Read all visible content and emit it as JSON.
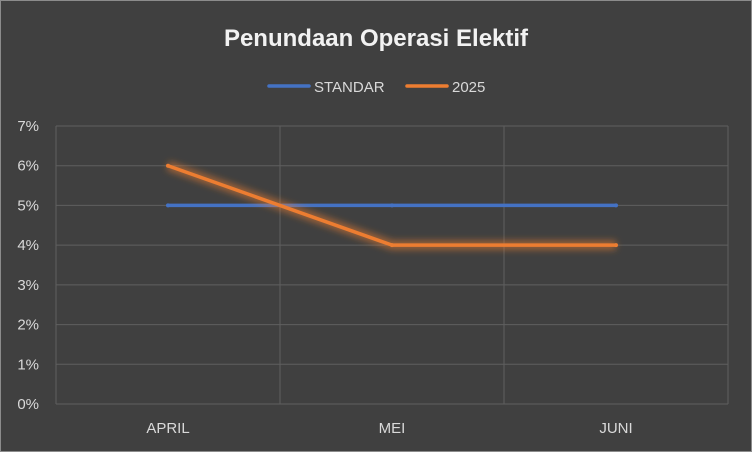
{
  "chart_data": {
    "type": "line",
    "title": "Penundaan Operasi Elektif",
    "categories": [
      "APRIL",
      "MEI",
      "JUNI"
    ],
    "series": [
      {
        "name": "STANDAR",
        "values": [
          5,
          5,
          5
        ],
        "color": "#4472C4"
      },
      {
        "name": "2025",
        "values": [
          6,
          4,
          4
        ],
        "color": "#ED7D31"
      }
    ],
    "y_ticks": [
      "0%",
      "1%",
      "2%",
      "3%",
      "4%",
      "5%",
      "6%",
      "7%"
    ],
    "ylim": [
      0,
      7
    ],
    "y_unit": "%",
    "grid": true,
    "legend_position": "top",
    "colors": {
      "background": "#404040",
      "gridline": "#5f5f5f",
      "text": "#d9d9d9",
      "title": "#f2f2f2"
    }
  }
}
